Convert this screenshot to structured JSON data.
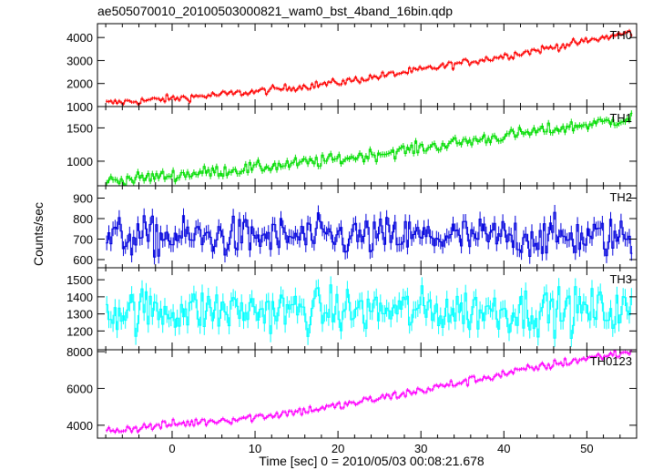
{
  "chart_data": {
    "type": "line",
    "title": "ae505070010_20100503000821_wam0_bst_4band_16bin.qdp",
    "xlabel": "Time [sec] 0 = 2010/05/03 00:08:21.678",
    "ylabel": "Counts/sec",
    "xlim": [
      -9,
      56
    ],
    "x_ticks": [
      0,
      10,
      20,
      30,
      40,
      50
    ],
    "x_tick_labels": [
      "0",
      "10",
      "20",
      "30",
      "40",
      "50"
    ],
    "grid": false,
    "error_bars": true,
    "bin_width_sec": 0.25,
    "x_start": -8.0,
    "x_end": 55.5,
    "panels": [
      {
        "name": "TH0",
        "color": "#ff0000",
        "ylim": [
          1000,
          4600
        ],
        "y_ticks": [
          1000,
          2000,
          3000,
          4000
        ],
        "y_tick_labels": [
          "1000",
          "2000",
          "3000",
          "4000"
        ],
        "trend": [
          {
            "x": -8,
            "y": 1150
          },
          {
            "x": 0,
            "y": 1350
          },
          {
            "x": 10,
            "y": 1650
          },
          {
            "x": 20,
            "y": 2050
          },
          {
            "x": 30,
            "y": 2600
          },
          {
            "x": 40,
            "y": 3200
          },
          {
            "x": 50,
            "y": 3850
          },
          {
            "x": 55.5,
            "y": 4250
          }
        ],
        "scatter": 80,
        "error": 75
      },
      {
        "name": "TH1",
        "color": "#00dd00",
        "ylim": [
          630,
          1820
        ],
        "y_ticks": [
          1000,
          1500
        ],
        "y_tick_labels": [
          "1000",
          "1500"
        ],
        "trend": [
          {
            "x": -8,
            "y": 700
          },
          {
            "x": 0,
            "y": 790
          },
          {
            "x": 10,
            "y": 900
          },
          {
            "x": 20,
            "y": 1030
          },
          {
            "x": 30,
            "y": 1200
          },
          {
            "x": 40,
            "y": 1380
          },
          {
            "x": 50,
            "y": 1550
          },
          {
            "x": 55.5,
            "y": 1650
          }
        ],
        "scatter": 45,
        "error": 45
      },
      {
        "name": "TH2",
        "color": "#0000dd",
        "ylim": [
          560,
          960
        ],
        "y_ticks": [
          600,
          700,
          800,
          900
        ],
        "y_tick_labels": [
          "600",
          "700",
          "800",
          "900"
        ],
        "trend": [
          {
            "x": -8,
            "y": 710
          },
          {
            "x": 55.5,
            "y": 710
          }
        ],
        "scatter": 48,
        "error": 36
      },
      {
        "name": "TH3",
        "color": "#00ffff",
        "ylim": [
          1090,
          1570
        ],
        "y_ticks": [
          1200,
          1300,
          1400,
          1500
        ],
        "y_tick_labels": [
          "1200",
          "1300",
          "1400",
          "1500"
        ],
        "trend": [
          {
            "x": -8,
            "y": 1320
          },
          {
            "x": 55.5,
            "y": 1320
          }
        ],
        "scatter": 65,
        "error": 50
      },
      {
        "name": "TH0123",
        "color": "#ff00ff",
        "ylim": [
          3300,
          8100
        ],
        "y_ticks": [
          4000,
          6000,
          8000
        ],
        "y_tick_labels": [
          "4000",
          "6000",
          "8000"
        ],
        "trend": [
          {
            "x": -8,
            "y": 3700
          },
          {
            "x": 0,
            "y": 4050
          },
          {
            "x": 10,
            "y": 4450
          },
          {
            "x": 20,
            "y": 5050
          },
          {
            "x": 30,
            "y": 5900
          },
          {
            "x": 40,
            "y": 6800
          },
          {
            "x": 50,
            "y": 7650
          },
          {
            "x": 55.5,
            "y": 8000
          }
        ],
        "scatter": 120,
        "error": 100
      }
    ]
  }
}
